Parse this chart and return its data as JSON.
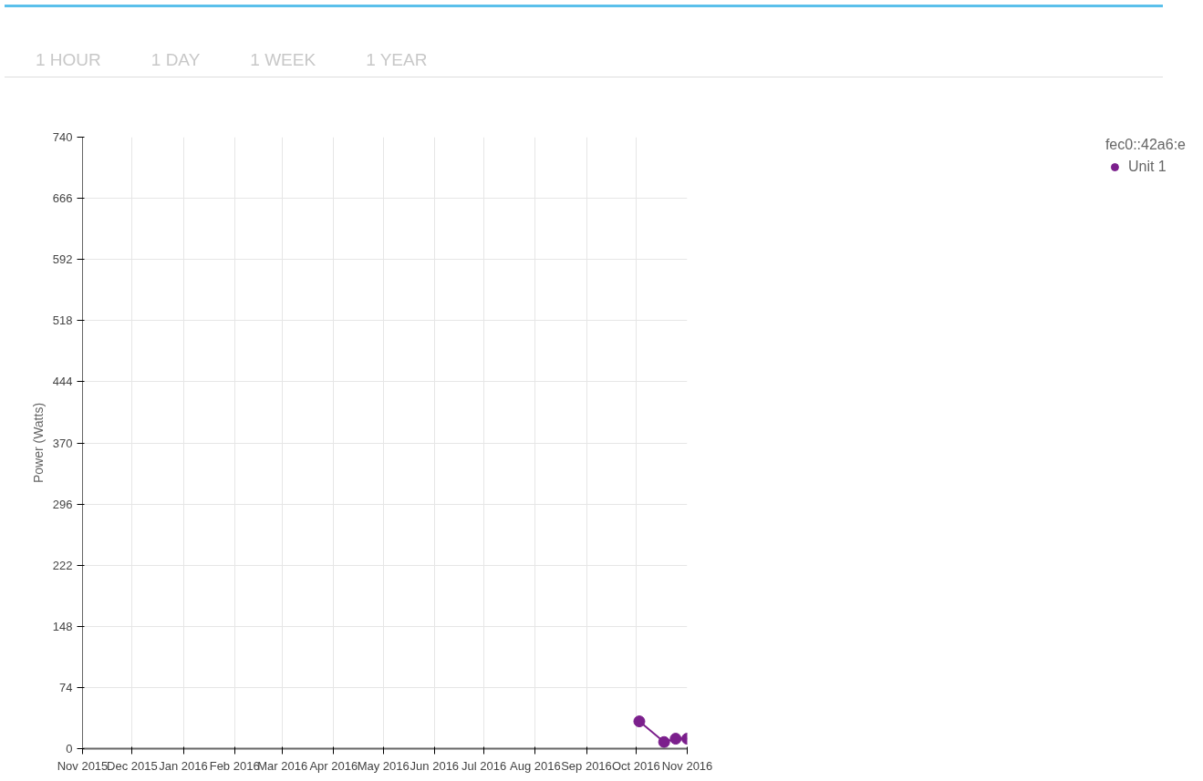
{
  "chart_data": {
    "type": "line",
    "annotations": [
      "1 HOUR",
      "1 DAY",
      "1 WEEK",
      "1 YEAR"
    ],
    "ylabel": "Power (Watts)",
    "legend_title": "fec0::42a6:e",
    "legend": "top right",
    "grid": true,
    "marker": "circle",
    "line_style": "solid",
    "series": [
      {
        "name": "Unit 1",
        "color": "#7b1f8c",
        "x": [
          "2016-10-03",
          "2016-10-18",
          "2016-10-25",
          "2016-11-01"
        ],
        "values": [
          33,
          8,
          12,
          12
        ]
      }
    ],
    "xlim": [
      "2015-11-01",
      "2016-11-01"
    ],
    "xticks": [
      {
        "value": "2015-11-01",
        "label": "Nov 2015"
      },
      {
        "value": "2015-12-01",
        "label": "Dec 2015"
      },
      {
        "value": "2016-01-01",
        "label": "Jan 2016"
      },
      {
        "value": "2016-02-01",
        "label": "Feb 2016"
      },
      {
        "value": "2016-03-01",
        "label": "Mar 2016"
      },
      {
        "value": "2016-04-01",
        "label": "Apr 2016"
      },
      {
        "value": "2016-05-01",
        "label": "May 2016"
      },
      {
        "value": "2016-06-01",
        "label": "Jun 2016"
      },
      {
        "value": "2016-07-01",
        "label": "Jul 2016"
      },
      {
        "value": "2016-08-01",
        "label": "Aug 2016"
      },
      {
        "value": "2016-09-01",
        "label": "Sep 2016"
      },
      {
        "value": "2016-10-01",
        "label": "Oct 2016"
      },
      {
        "value": "2016-11-01",
        "label": "Nov 2016"
      }
    ],
    "ylim": [
      0,
      740
    ],
    "yticks": [
      0,
      74,
      148,
      222,
      296,
      370,
      444,
      518,
      592,
      666,
      740
    ]
  }
}
